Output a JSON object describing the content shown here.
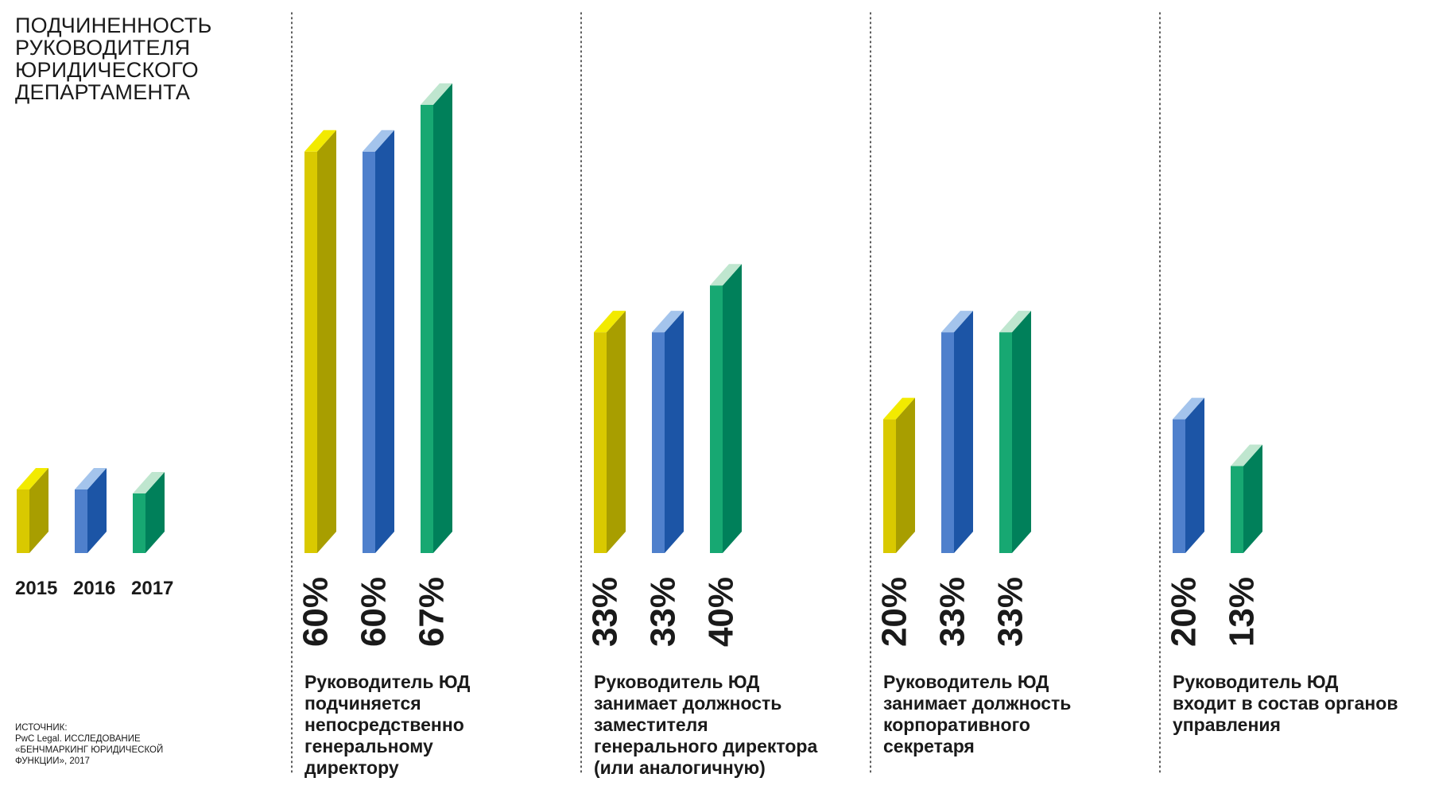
{
  "title_lines": [
    "ПОДЧИНЕННОСТЬ",
    "РУКОВОДИТЕЛЯ",
    "ЮРИДИЧЕСКОГО",
    "ДЕПАРТАМЕНТА"
  ],
  "source_lines": [
    "ИСТОЧНИК:",
    "PwC Legal. ИССЛЕДОВАНИЕ",
    "«БЕНЧМАРКИНГ ЮРИДИЧЕСКОЙ",
    "ФУНКЦИИ», 2017"
  ],
  "colors": {
    "2015": {
      "front": "#d9c900",
      "side": "#a89e00",
      "top": "#f2ea00"
    },
    "2016": {
      "front": "#4f80cc",
      "side": "#1c55a6",
      "top": "#a4c4ec"
    },
    "2017": {
      "front": "#17a872",
      "side": "#00805a",
      "top": "#bfe6cf"
    }
  },
  "chart_data": {
    "type": "bar",
    "title": "ПОДЧИНЕННОСТЬ РУКОВОДИТЕЛЯ ЮРИДИЧЕСКОГО ДЕПАРТАМЕНТА",
    "unit": "%",
    "ylim": [
      0,
      70
    ],
    "grid": false,
    "legend": {
      "position": "left",
      "entries": [
        "2015",
        "2016",
        "2017"
      ]
    },
    "groups": [
      {
        "label_lines": [
          "Руководитель ЮД",
          "подчиняется",
          "непосредственно",
          "генеральному",
          "директору"
        ],
        "bars": [
          {
            "series": "2015",
            "value": 60,
            "label": "60%"
          },
          {
            "series": "2016",
            "value": 60,
            "label": "60%"
          },
          {
            "series": "2017",
            "value": 67,
            "label": "67%"
          }
        ]
      },
      {
        "label_lines": [
          "Руководитель ЮД",
          "занимает должность",
          "заместителя",
          "генерального директора",
          "(или аналогичную)"
        ],
        "bars": [
          {
            "series": "2015",
            "value": 33,
            "label": "33%"
          },
          {
            "series": "2016",
            "value": 33,
            "label": "33%"
          },
          {
            "series": "2017",
            "value": 40,
            "label": "40%"
          }
        ]
      },
      {
        "label_lines": [
          "Руководитель ЮД",
          "занимает должность",
          "корпоративного",
          "секретаря"
        ],
        "bars": [
          {
            "series": "2015",
            "value": 20,
            "label": "20%"
          },
          {
            "series": "2016",
            "value": 33,
            "label": "33%"
          },
          {
            "series": "2017",
            "value": 33,
            "label": "33%"
          }
        ]
      },
      {
        "label_lines": [
          "Руководитель ЮД",
          "входит в состав органов",
          "управления"
        ],
        "bars": [
          {
            "series": "2016",
            "value": 20,
            "label": "20%"
          },
          {
            "series": "2017",
            "value": 13,
            "label": "13%"
          }
        ]
      }
    ]
  }
}
